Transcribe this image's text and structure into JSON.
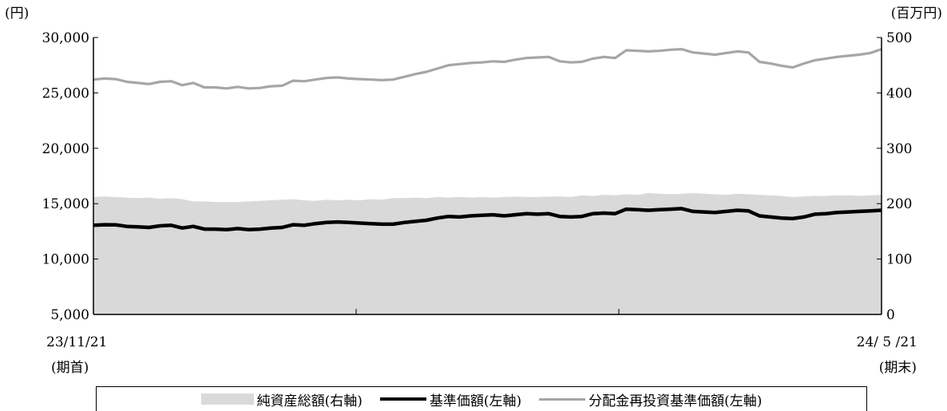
{
  "chart_data": {
    "type": "line",
    "left_axis": {
      "unit": "(円)",
      "min": 5000,
      "max": 30000,
      "ticks": [
        "30,000",
        "25,000",
        "20,000",
        "15,000",
        "10,000",
        "5,000"
      ]
    },
    "right_axis": {
      "unit": "(百万円)",
      "min": 0,
      "max": 500,
      "ticks": [
        "500",
        "400",
        "300",
        "200",
        "100",
        "0"
      ]
    },
    "x_start": {
      "date": "23/11/21",
      "label": "(期首)"
    },
    "x_end": {
      "date": "24/ 5 /21",
      "label": "(期末)"
    },
    "series": [
      {
        "name": "純資産総額(右軸)",
        "axis": "right",
        "render": "area",
        "color": "#d9d9d9",
        "values": [
          212,
          213,
          212,
          211,
          210,
          211,
          209,
          210,
          208,
          204,
          204,
          203,
          203,
          203,
          204,
          205,
          206,
          207,
          208,
          206,
          205,
          207,
          206,
          207,
          206,
          208,
          207,
          210,
          210,
          211,
          210,
          212,
          211,
          212,
          211,
          212,
          211,
          212,
          213,
          212,
          212,
          213,
          213,
          212,
          215,
          214,
          216,
          215,
          217,
          216,
          219,
          218,
          217,
          218,
          219,
          218,
          217,
          216,
          218,
          217,
          216,
          215,
          214,
          212,
          213,
          214,
          214,
          215,
          215,
          214,
          215,
          216
        ]
      },
      {
        "name": "基準価額(左軸)",
        "axis": "left",
        "render": "line",
        "color": "#000000",
        "values": [
          13050,
          13100,
          13090,
          12950,
          12900,
          12850,
          13000,
          13050,
          12800,
          12950,
          12700,
          12700,
          12650,
          12750,
          12650,
          12700,
          12800,
          12850,
          13100,
          13050,
          13200,
          13300,
          13350,
          13300,
          13250,
          13200,
          13150,
          13150,
          13300,
          13400,
          13500,
          13700,
          13850,
          13800,
          13900,
          13950,
          14000,
          13900,
          14000,
          14100,
          14050,
          14100,
          13850,
          13800,
          13850,
          14100,
          14150,
          14100,
          14500,
          14450,
          14400,
          14450,
          14500,
          14550,
          14300,
          14250,
          14200,
          14300,
          14400,
          14350,
          13900,
          13800,
          13700,
          13650,
          13800,
          14050,
          14100,
          14200,
          14250,
          14300,
          14350,
          14400
        ]
      },
      {
        "name": "分配金再投資基準価額(左軸)",
        "axis": "left",
        "render": "line",
        "color": "#a6a6a6",
        "values": [
          26200,
          26300,
          26250,
          26000,
          25900,
          25800,
          26000,
          26050,
          25700,
          25900,
          25500,
          25500,
          25400,
          25550,
          25400,
          25450,
          25600,
          25650,
          26100,
          26050,
          26200,
          26350,
          26400,
          26300,
          26250,
          26200,
          26150,
          26200,
          26450,
          26700,
          26900,
          27200,
          27500,
          27600,
          27700,
          27750,
          27850,
          27800,
          28000,
          28150,
          28200,
          28250,
          27850,
          27750,
          27800,
          28100,
          28250,
          28150,
          28850,
          28800,
          28750,
          28800,
          28900,
          28950,
          28650,
          28550,
          28450,
          28600,
          28750,
          28650,
          27800,
          27650,
          27450,
          27300,
          27650,
          27950,
          28100,
          28250,
          28350,
          28450,
          28600,
          28950
        ]
      }
    ],
    "grid": false,
    "legend_position": "bottom"
  },
  "legend": {
    "area_label": "純資産総額(右軸)",
    "nav_label": "基準価額(左軸)",
    "reinvest_label": "分配金再投資基準価額(左軸)"
  }
}
